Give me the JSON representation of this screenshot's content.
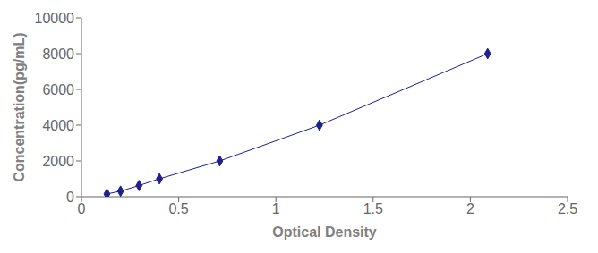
{
  "chart_data": {
    "type": "line",
    "x": [
      0.131,
      0.201,
      0.296,
      0.401,
      0.711,
      1.224,
      2.089
    ],
    "values": [
      156.25,
      312.5,
      625,
      1000,
      2000,
      4000,
      8000
    ],
    "color": "#1f1f8f",
    "marker": "diamond",
    "line_style": "solid",
    "xlabel": "Optical Density",
    "ylabel": "Concentration(pg/mL)",
    "xlim": [
      0,
      2.5
    ],
    "ylim": [
      0,
      10000
    ],
    "xticks": [
      0,
      0.5,
      1,
      1.5,
      2,
      2.5
    ],
    "yticks": [
      0,
      2000,
      4000,
      6000,
      8000,
      10000
    ],
    "grid": false
  }
}
